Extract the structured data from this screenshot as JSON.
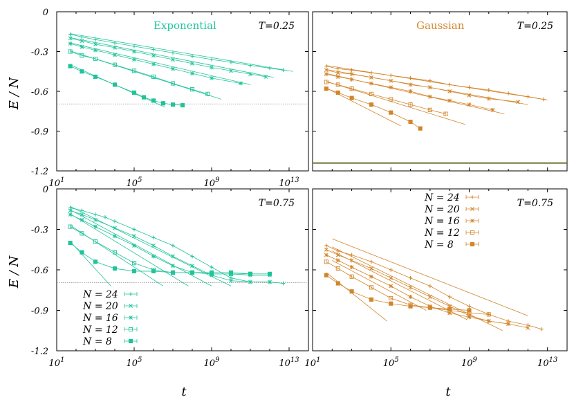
{
  "colors": {
    "exponential": "#1fc49a",
    "gaussian": "#d2852a",
    "frame": "#000000",
    "reference": "#888888"
  },
  "shared_axis_labels": {
    "ylabel": "E / N",
    "xlabel": "t"
  },
  "chart_data": [
    {
      "id": "exp_T025",
      "type": "line",
      "title": "Exponential",
      "temperature_label": "T=0.25",
      "color": "exponential",
      "xlabel": "",
      "ylabel": "E / N",
      "x_scale": "log10",
      "xlim_log10": [
        1,
        14
      ],
      "ylim": [
        -1.2,
        0
      ],
      "x_ticks": [
        "10^1",
        "10^5",
        "10^9",
        "10^13"
      ],
      "y_ticks": [
        "0",
        "-0.3",
        "-0.6",
        "-0.9",
        "-1.2"
      ],
      "reference_lines": [
        -0.695
      ],
      "series": [
        {
          "name": "N = 24",
          "marker": "plus",
          "x_log10": [
            1.7,
            2.3,
            3,
            4,
            5,
            6,
            7,
            8,
            9,
            10,
            11,
            12,
            12.7
          ],
          "y": [
            -0.17,
            -0.19,
            -0.21,
            -0.235,
            -0.26,
            -0.285,
            -0.31,
            -0.335,
            -0.36,
            -0.38,
            -0.405,
            -0.425,
            -0.44
          ]
        },
        {
          "name": "N = 20",
          "marker": "x",
          "x_log10": [
            1.7,
            2.3,
            3,
            4,
            5,
            6,
            7,
            8,
            9,
            10,
            11,
            11.8
          ],
          "y": [
            -0.2,
            -0.22,
            -0.245,
            -0.27,
            -0.3,
            -0.33,
            -0.36,
            -0.39,
            -0.42,
            -0.445,
            -0.47,
            -0.49
          ]
        },
        {
          "name": "N = 16",
          "marker": "star",
          "x_log10": [
            1.7,
            2.3,
            3,
            4,
            5,
            6,
            7,
            8,
            9,
            10.5
          ],
          "y": [
            -0.24,
            -0.265,
            -0.29,
            -0.325,
            -0.36,
            -0.395,
            -0.43,
            -0.465,
            -0.5,
            -0.54
          ]
        },
        {
          "name": "N = 12",
          "marker": "square",
          "x_log10": [
            1.7,
            2.3,
            3,
            4,
            5,
            6,
            7,
            8,
            8.8
          ],
          "y": [
            -0.3,
            -0.33,
            -0.355,
            -0.4,
            -0.445,
            -0.49,
            -0.54,
            -0.585,
            -0.62
          ]
        },
        {
          "name": "N = 8",
          "marker": "filled-square",
          "x_log10": [
            1.7,
            2.3,
            3,
            4,
            5,
            5.5,
            6,
            6.5,
            7,
            7.5
          ],
          "y": [
            -0.41,
            -0.45,
            -0.49,
            -0.55,
            -0.61,
            -0.645,
            -0.67,
            -0.69,
            -0.7,
            -0.705
          ]
        }
      ],
      "fit_lines": [
        {
          "x_log10": [
            1.7,
            13.2
          ],
          "y": [
            -0.165,
            -0.45
          ]
        },
        {
          "x_log10": [
            1.7,
            12.2
          ],
          "y": [
            -0.195,
            -0.495
          ]
        },
        {
          "x_log10": [
            1.7,
            11.0
          ],
          "y": [
            -0.235,
            -0.55
          ]
        },
        {
          "x_log10": [
            1.7,
            9.5
          ],
          "y": [
            -0.295,
            -0.66
          ]
        },
        {
          "x_log10": [
            1.7,
            6.6
          ],
          "y": [
            -0.4,
            -0.72
          ]
        }
      ]
    },
    {
      "id": "gau_T025",
      "type": "line",
      "title": "Gaussian",
      "temperature_label": "T=0.25",
      "color": "gaussian",
      "xlabel": "",
      "ylabel": "",
      "x_scale": "log10",
      "xlim_log10": [
        1,
        14
      ],
      "ylim": [
        -1.2,
        0
      ],
      "x_ticks": [],
      "y_ticks": [],
      "reference_lines": [
        -1.135,
        -1.145
      ],
      "series": [
        {
          "name": "N = 24",
          "marker": "plus",
          "x_log10": [
            1.7,
            2.3,
            3,
            4,
            5,
            6,
            7,
            8,
            9,
            10,
            11,
            12,
            12.8
          ],
          "y": [
            -0.41,
            -0.43,
            -0.44,
            -0.46,
            -0.48,
            -0.5,
            -0.52,
            -0.55,
            -0.57,
            -0.59,
            -0.615,
            -0.64,
            -0.66
          ]
        },
        {
          "name": "N = 20",
          "marker": "x",
          "x_log10": [
            1.7,
            2.3,
            3,
            4,
            5,
            6,
            7,
            8,
            9,
            10,
            11.5
          ],
          "y": [
            -0.44,
            -0.46,
            -0.47,
            -0.495,
            -0.52,
            -0.55,
            -0.57,
            -0.6,
            -0.63,
            -0.655,
            -0.68
          ]
        },
        {
          "name": "N = 16",
          "marker": "star",
          "x_log10": [
            1.7,
            2.3,
            3,
            4,
            5,
            6,
            7,
            8,
            9,
            10.2
          ],
          "y": [
            -0.47,
            -0.49,
            -0.51,
            -0.54,
            -0.57,
            -0.6,
            -0.64,
            -0.67,
            -0.7,
            -0.74
          ]
        },
        {
          "name": "N = 12",
          "marker": "square",
          "x_log10": [
            1.7,
            2.3,
            3,
            4,
            5,
            6,
            7,
            7.8
          ],
          "y": [
            -0.53,
            -0.55,
            -0.58,
            -0.62,
            -0.66,
            -0.7,
            -0.74,
            -0.77
          ]
        },
        {
          "name": "N = 8",
          "marker": "filled-square",
          "x_log10": [
            1.7,
            2.3,
            3,
            4,
            5,
            6,
            6.5
          ],
          "y": [
            -0.58,
            -0.61,
            -0.65,
            -0.7,
            -0.76,
            -0.83,
            -0.88
          ]
        }
      ],
      "fit_lines": [
        {
          "x_log10": [
            1.7,
            13.0
          ],
          "y": [
            -0.405,
            -0.665
          ]
        },
        {
          "x_log10": [
            1.7,
            12.0
          ],
          "y": [
            -0.435,
            -0.7
          ]
        },
        {
          "x_log10": [
            1.7,
            10.8
          ],
          "y": [
            -0.465,
            -0.77
          ]
        },
        {
          "x_log10": [
            1.7,
            8.8
          ],
          "y": [
            -0.525,
            -0.85
          ]
        },
        {
          "x_log10": [
            1.7,
            5.5
          ],
          "y": [
            -0.575,
            -0.86
          ]
        }
      ]
    },
    {
      "id": "exp_T075",
      "type": "line",
      "title": "",
      "temperature_label": "T=0.75",
      "color": "exponential",
      "xlabel": "t",
      "ylabel": "E / N",
      "x_scale": "log10",
      "xlim_log10": [
        1,
        14
      ],
      "ylim": [
        -1.2,
        0
      ],
      "x_ticks": [
        "10^1",
        "10^5",
        "10^9",
        "10^13"
      ],
      "y_ticks": [
        "0",
        "-0.3",
        "-0.6",
        "-0.9",
        "-1.2"
      ],
      "reference_lines": [
        -0.695
      ],
      "legend": {
        "position": "bottom-left",
        "entries": [
          "N = 24",
          "N = 20",
          "N = 16",
          "N = 12",
          "N =   8"
        ]
      },
      "series": [
        {
          "name": "N = 24",
          "marker": "plus",
          "x_log10": [
            1.7,
            2.3,
            3,
            3.5,
            4,
            5,
            6,
            7,
            8,
            9,
            10,
            11,
            12,
            12.7
          ],
          "y": [
            -0.14,
            -0.16,
            -0.19,
            -0.21,
            -0.24,
            -0.3,
            -0.36,
            -0.42,
            -0.5,
            -0.58,
            -0.66,
            -0.69,
            -0.69,
            -0.7
          ]
        },
        {
          "name": "N = 20",
          "marker": "x",
          "x_log10": [
            1.7,
            2.3,
            3,
            4,
            5,
            6,
            7,
            8,
            9,
            10,
            11,
            12
          ],
          "y": [
            -0.16,
            -0.19,
            -0.23,
            -0.29,
            -0.35,
            -0.42,
            -0.5,
            -0.57,
            -0.64,
            -0.68,
            -0.69,
            -0.69
          ]
        },
        {
          "name": "N = 16",
          "marker": "star",
          "x_log10": [
            1.7,
            2.3,
            3,
            4,
            5,
            6,
            7,
            8,
            9,
            10,
            11,
            12
          ],
          "y": [
            -0.19,
            -0.23,
            -0.28,
            -0.35,
            -0.42,
            -0.5,
            -0.57,
            -0.62,
            -0.63,
            -0.63,
            -0.64,
            -0.64
          ]
        },
        {
          "name": "N = 12",
          "marker": "square",
          "x_log10": [
            1.7,
            2.3,
            3,
            4,
            5,
            6,
            7,
            8,
            9,
            10,
            11
          ],
          "y": [
            -0.28,
            -0.33,
            -0.39,
            -0.47,
            -0.55,
            -0.6,
            -0.62,
            -0.62,
            -0.63,
            -0.63,
            -0.63
          ]
        },
        {
          "name": "N = 8",
          "marker": "filled-square",
          "x_log10": [
            1.7,
            2.3,
            3,
            4,
            5,
            6,
            7,
            8,
            9,
            10,
            11,
            12
          ],
          "y": [
            -0.4,
            -0.47,
            -0.54,
            -0.59,
            -0.61,
            -0.61,
            -0.62,
            -0.62,
            -0.62,
            -0.62,
            -0.63,
            -0.63
          ]
        }
      ],
      "fit_lines": [
        {
          "x_log10": [
            1.7,
            10.0
          ],
          "y": [
            -0.13,
            -0.72
          ]
        },
        {
          "x_log10": [
            1.7,
            9.0
          ],
          "y": [
            -0.155,
            -0.72
          ]
        },
        {
          "x_log10": [
            1.7,
            7.8
          ],
          "y": [
            -0.185,
            -0.72
          ]
        },
        {
          "x_log10": [
            1.7,
            6.5
          ],
          "y": [
            -0.27,
            -0.72
          ]
        },
        {
          "x_log10": [
            1.7,
            3.8
          ],
          "y": [
            -0.39,
            -0.72
          ]
        }
      ]
    },
    {
      "id": "gau_T075",
      "type": "line",
      "title": "",
      "temperature_label": "T=0.75",
      "color": "gaussian",
      "xlabel": "t",
      "ylabel": "",
      "x_scale": "log10",
      "xlim_log10": [
        1,
        14
      ],
      "ylim": [
        -1.2,
        0
      ],
      "x_ticks": [
        "10^1",
        "10^5",
        "10^9",
        "10^13"
      ],
      "y_ticks": [],
      "reference_lines": [],
      "legend": {
        "position": "top-left",
        "entries": [
          "N = 24",
          "N = 20",
          "N = 16",
          "N = 12",
          "N =   8"
        ]
      },
      "series": [
        {
          "name": "N = 24",
          "marker": "plus",
          "x_log10": [
            1.7,
            2.3,
            3,
            4,
            5,
            6,
            7,
            8,
            9,
            10,
            11,
            12,
            12.7
          ],
          "y": [
            -0.42,
            -0.46,
            -0.49,
            -0.54,
            -0.6,
            -0.66,
            -0.72,
            -0.8,
            -0.87,
            -0.93,
            -0.98,
            -1.01,
            -1.04
          ]
        },
        {
          "name": "N = 20",
          "marker": "x",
          "x_log10": [
            1.7,
            2.3,
            3,
            4,
            5,
            6,
            7,
            8,
            9,
            10,
            11,
            12
          ],
          "y": [
            -0.45,
            -0.49,
            -0.53,
            -0.59,
            -0.66,
            -0.73,
            -0.8,
            -0.87,
            -0.94,
            -0.98,
            -1.0,
            -1.03
          ]
        },
        {
          "name": "N = 16",
          "marker": "star",
          "x_log10": [
            1.7,
            2.3,
            3,
            4,
            5,
            6,
            7,
            8,
            9,
            10,
            11
          ],
          "y": [
            -0.49,
            -0.53,
            -0.58,
            -0.65,
            -0.72,
            -0.8,
            -0.87,
            -0.92,
            -0.95,
            -0.98,
            -1.0
          ]
        },
        {
          "name": "N = 12",
          "marker": "square",
          "x_log10": [
            1.7,
            2.3,
            3,
            4,
            5,
            6,
            7,
            8,
            9,
            10
          ],
          "y": [
            -0.54,
            -0.59,
            -0.65,
            -0.73,
            -0.81,
            -0.86,
            -0.88,
            -0.9,
            -0.92,
            -0.93
          ]
        },
        {
          "name": "N = 8",
          "marker": "filled-square",
          "x_log10": [
            1.7,
            2.3,
            3,
            4,
            5,
            6,
            7,
            8,
            9
          ],
          "y": [
            -0.64,
            -0.7,
            -0.76,
            -0.82,
            -0.85,
            -0.87,
            -0.88,
            -0.89,
            -0.9
          ]
        }
      ],
      "fit_lines": [
        {
          "x_log10": [
            2.0,
            12.0
          ],
          "y": [
            -0.37,
            -0.94
          ]
        },
        {
          "x_log10": [
            2.0,
            10.7
          ],
          "y": [
            -0.43,
            -1.05
          ]
        },
        {
          "x_log10": [
            2.0,
            8.9
          ],
          "y": [
            -0.46,
            -0.97
          ]
        },
        {
          "x_log10": [
            2.0,
            6.8
          ],
          "y": [
            -0.53,
            -0.9
          ]
        },
        {
          "x_log10": [
            1.7,
            4.8
          ],
          "y": [
            -0.62,
            -0.98
          ]
        }
      ]
    }
  ]
}
